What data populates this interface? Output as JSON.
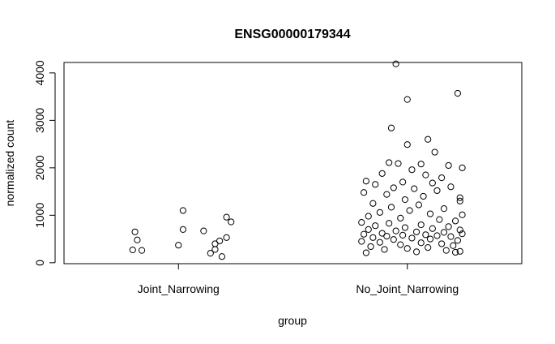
{
  "chart_data": {
    "type": "scatter",
    "title": "ENSG00000179344",
    "xlabel": "group",
    "ylabel": "normalized count",
    "categories": [
      "Joint_Narrowing",
      "No_Joint_Narrowing"
    ],
    "yticks": [
      0,
      1000,
      2000,
      3000,
      4000
    ],
    "ylim": [
      -20,
      4220
    ],
    "grid": false,
    "legend": "none",
    "series": [
      {
        "category": "Joint_Narrowing",
        "points": [
          {
            "j": 0.02,
            "y": 1100
          },
          {
            "j": 0.21,
            "y": 960
          },
          {
            "j": 0.23,
            "y": 860
          },
          {
            "j": 0.02,
            "y": 700
          },
          {
            "j": -0.19,
            "y": 650
          },
          {
            "j": 0.11,
            "y": 670
          },
          {
            "j": 0.21,
            "y": 530
          },
          {
            "j": -0.18,
            "y": 480
          },
          {
            "j": 0.18,
            "y": 460
          },
          {
            "j": 0.16,
            "y": 400
          },
          {
            "j": 0.0,
            "y": 370
          },
          {
            "j": -0.2,
            "y": 270
          },
          {
            "j": -0.16,
            "y": 260
          },
          {
            "j": 0.16,
            "y": 280
          },
          {
            "j": 0.14,
            "y": 200
          },
          {
            "j": 0.19,
            "y": 130
          }
        ]
      },
      {
        "category": "No_Joint_Narrowing",
        "points": [
          {
            "j": -0.05,
            "y": 4190
          },
          {
            "j": 0.22,
            "y": 3570
          },
          {
            "j": 0.0,
            "y": 3440
          },
          {
            "j": -0.07,
            "y": 2840
          },
          {
            "j": 0.09,
            "y": 2600
          },
          {
            "j": 0.0,
            "y": 2490
          },
          {
            "j": 0.12,
            "y": 2330
          },
          {
            "j": -0.08,
            "y": 2110
          },
          {
            "j": -0.04,
            "y": 2090
          },
          {
            "j": 0.06,
            "y": 2080
          },
          {
            "j": 0.18,
            "y": 2050
          },
          {
            "j": 0.24,
            "y": 2000
          },
          {
            "j": 0.02,
            "y": 1960
          },
          {
            "j": -0.11,
            "y": 1880
          },
          {
            "j": 0.08,
            "y": 1850
          },
          {
            "j": 0.15,
            "y": 1790
          },
          {
            "j": -0.18,
            "y": 1720
          },
          {
            "j": -0.02,
            "y": 1700
          },
          {
            "j": 0.11,
            "y": 1680
          },
          {
            "j": -0.14,
            "y": 1650
          },
          {
            "j": 0.19,
            "y": 1600
          },
          {
            "j": -0.06,
            "y": 1580
          },
          {
            "j": 0.03,
            "y": 1560
          },
          {
            "j": 0.13,
            "y": 1520
          },
          {
            "j": -0.19,
            "y": 1480
          },
          {
            "j": -0.09,
            "y": 1440
          },
          {
            "j": 0.07,
            "y": 1400
          },
          {
            "j": 0.23,
            "y": 1370
          },
          {
            "j": -0.01,
            "y": 1330
          },
          {
            "j": 0.23,
            "y": 1300
          },
          {
            "j": -0.15,
            "y": 1250
          },
          {
            "j": 0.05,
            "y": 1220
          },
          {
            "j": -0.07,
            "y": 1170
          },
          {
            "j": 0.16,
            "y": 1140
          },
          {
            "j": 0.01,
            "y": 1100
          },
          {
            "j": -0.12,
            "y": 1060
          },
          {
            "j": 0.1,
            "y": 1030
          },
          {
            "j": 0.24,
            "y": 1010
          },
          {
            "j": -0.17,
            "y": 980
          },
          {
            "j": -0.03,
            "y": 940
          },
          {
            "j": 0.14,
            "y": 910
          },
          {
            "j": 0.21,
            "y": 880
          },
          {
            "j": -0.2,
            "y": 850
          },
          {
            "j": -0.08,
            "y": 830
          },
          {
            "j": 0.06,
            "y": 800
          },
          {
            "j": -0.14,
            "y": 780
          },
          {
            "j": 0.18,
            "y": 760
          },
          {
            "j": -0.01,
            "y": 740
          },
          {
            "j": 0.11,
            "y": 720
          },
          {
            "j": -0.17,
            "y": 700
          },
          {
            "j": 0.23,
            "y": 690
          },
          {
            "j": -0.05,
            "y": 670
          },
          {
            "j": 0.04,
            "y": 650
          },
          {
            "j": 0.16,
            "y": 640
          },
          {
            "j": -0.11,
            "y": 620
          },
          {
            "j": 0.24,
            "y": 610
          },
          {
            "j": -0.19,
            "y": 600
          },
          {
            "j": 0.08,
            "y": 590
          },
          {
            "j": -0.02,
            "y": 580
          },
          {
            "j": 0.13,
            "y": 570
          },
          {
            "j": -0.09,
            "y": 560
          },
          {
            "j": 0.19,
            "y": 550
          },
          {
            "j": -0.15,
            "y": 530
          },
          {
            "j": 0.02,
            "y": 520
          },
          {
            "j": 0.1,
            "y": 500
          },
          {
            "j": -0.06,
            "y": 490
          },
          {
            "j": 0.22,
            "y": 470
          },
          {
            "j": -0.2,
            "y": 450
          },
          {
            "j": -0.12,
            "y": 430
          },
          {
            "j": 0.06,
            "y": 420
          },
          {
            "j": 0.15,
            "y": 400
          },
          {
            "j": -0.03,
            "y": 380
          },
          {
            "j": 0.2,
            "y": 360
          },
          {
            "j": -0.16,
            "y": 340
          },
          {
            "j": 0.09,
            "y": 320
          },
          {
            "j": 0.0,
            "y": 300
          },
          {
            "j": -0.1,
            "y": 280
          },
          {
            "j": 0.17,
            "y": 260
          },
          {
            "j": 0.23,
            "y": 240
          },
          {
            "j": 0.04,
            "y": 230
          },
          {
            "j": -0.18,
            "y": 210
          },
          {
            "j": 0.21,
            "y": 220
          }
        ]
      }
    ]
  }
}
